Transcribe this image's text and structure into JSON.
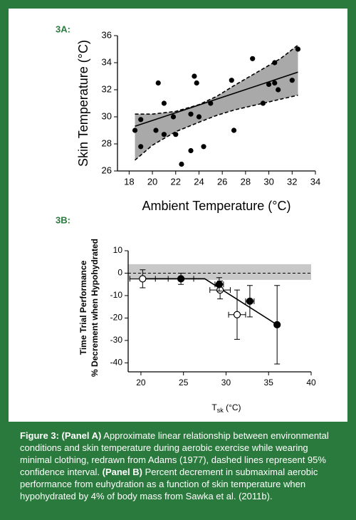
{
  "chart_data": [
    {
      "type": "scatter",
      "panel_label": "3A:",
      "x_label": "Ambient Temperature (°C)",
      "y_label": "Skin Temperature (°C)",
      "xlim": [
        17,
        34
      ],
      "ylim": [
        26,
        36
      ],
      "xticks": [
        18,
        20,
        22,
        24,
        26,
        28,
        30,
        32,
        34
      ],
      "yticks": [
        26,
        28,
        30,
        32,
        34,
        36
      ],
      "points": {
        "color": "#000000",
        "x": [
          18.5,
          19,
          19,
          20.3,
          20.5,
          21,
          21,
          21.8,
          22,
          22.5,
          23.3,
          23.3,
          23.6,
          23.8,
          24,
          24.4,
          25,
          26.8,
          27,
          28.6,
          29.5,
          30,
          30.5,
          30.5,
          30.8,
          32,
          32.5
        ],
        "y": [
          29,
          29.8,
          27.8,
          29,
          32.5,
          28.7,
          31,
          30,
          28.7,
          26.5,
          30.2,
          27.5,
          33,
          32.5,
          30,
          27.8,
          31,
          32.7,
          29,
          34.3,
          31,
          32.4,
          34,
          32.5,
          32,
          32.7,
          35
        ]
      },
      "fit": {
        "x": [
          18.5,
          32.5
        ],
        "y": [
          29.3,
          33.3
        ]
      },
      "band": {
        "color": "#a9a9a9",
        "x": [
          18.5,
          20,
          22,
          24,
          25.5,
          27,
          29,
          31,
          32.5
        ],
        "upper": [
          30.2,
          30.2,
          30.4,
          30.9,
          31.5,
          32.3,
          33.3,
          34.3,
          35.3
        ],
        "lower": [
          26.8,
          27.9,
          28.9,
          29.6,
          30.1,
          30.5,
          30.9,
          31.3,
          31.6
        ]
      }
    },
    {
      "type": "errorbar",
      "panel_label": "3B:",
      "x_label": {
        "main": "T",
        "subscript": "sk",
        "suffix": " (°C)"
      },
      "y_label": [
        "Time Trial Performance",
        "% Decrement when Hypohydrated"
      ],
      "xlim": [
        18.5,
        40
      ],
      "ylim": [
        -44,
        10
      ],
      "xticks": [
        20,
        25,
        30,
        35,
        40
      ],
      "yticks": [
        10,
        0,
        -10,
        -20,
        -30,
        -40
      ],
      "reference_band": {
        "range": [
          -3,
          4
        ],
        "color": "#c8c8c8"
      },
      "reference_line": 0,
      "points": {
        "x": [
          20.2,
          29.3,
          31.3,
          24.7,
          29.2,
          32.8,
          36
        ],
        "y": [
          -2.5,
          -7.5,
          -18.5,
          -2.5,
          -5,
          -12.5,
          -23
        ],
        "xerr": [
          1.5,
          1.2,
          1,
          1.5,
          0.5,
          0.5,
          0
        ],
        "yerr": [
          4,
          4,
          11,
          2.5,
          3,
          7,
          17.5
        ],
        "filled": [
          false,
          false,
          false,
          true,
          true,
          true,
          true
        ]
      },
      "fit": {
        "x": [
          20,
          27.5,
          36
        ],
        "y": [
          -2.5,
          -2.5,
          -23
        ]
      }
    }
  ],
  "caption": [
    {
      "text": "Figure 3: ",
      "bold": true
    },
    {
      "text": "(Panel A)",
      "bold": true
    },
    {
      "text": " Approximate linear relationship between environmental conditions and skin temperature during aerobic exercise while wearing minimal clothing, redrawn from Adams (1977), dashed lines represent 95% confidence interval. ",
      "bold": false
    },
    {
      "text": "(Panel B)",
      "bold": true
    },
    {
      "text": " Percent decrement in submaximal aerobic performance from euhydration as a function of skin temperature when hypohydrated by 4% of body mass from Sawka et al. (2011b).",
      "bold": false
    }
  ]
}
